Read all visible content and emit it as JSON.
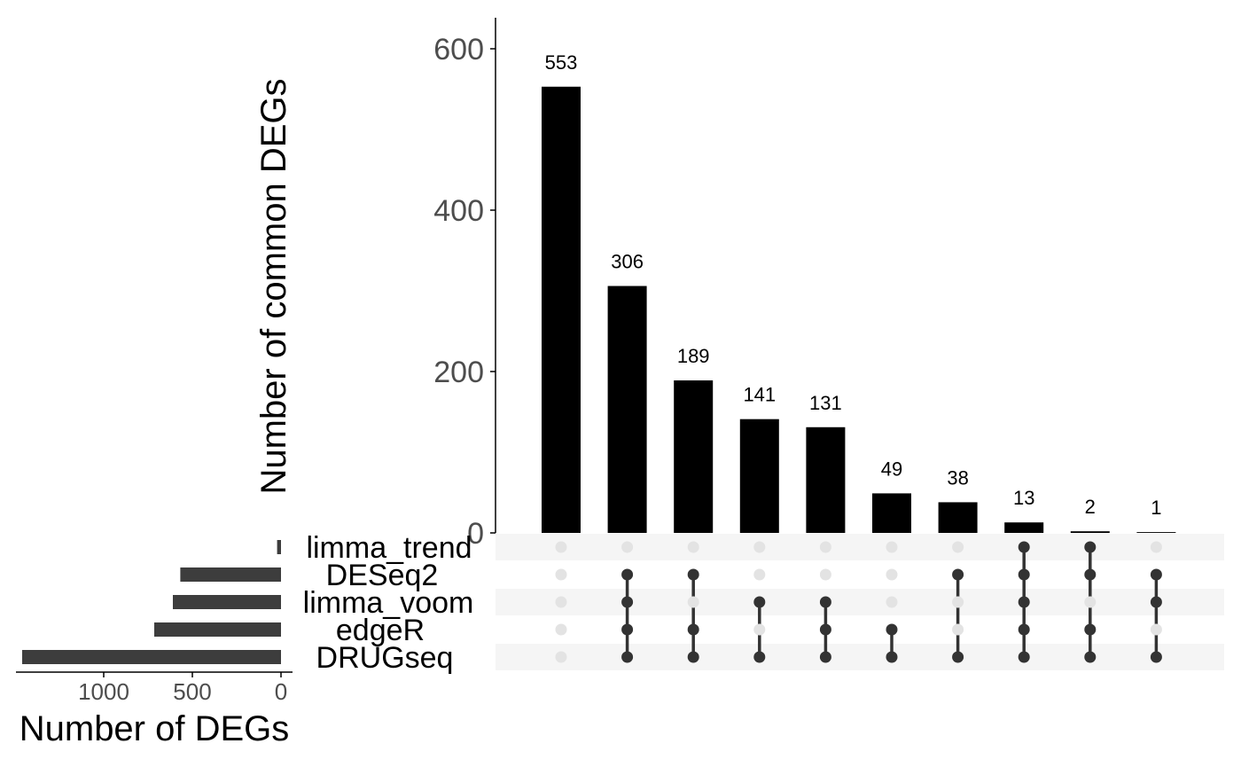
{
  "chart_data": {
    "type": "upset",
    "intersection_plot": {
      "type": "bar",
      "ylabel": "Number of common DEGs",
      "yticks": [
        0,
        200,
        400,
        600
      ],
      "ylim": [
        0,
        640
      ],
      "values": [
        553,
        306,
        189,
        141,
        131,
        49,
        38,
        13,
        2,
        1
      ],
      "value_labels": [
        "553",
        "306",
        "189",
        "141",
        "131",
        "49",
        "38",
        "13",
        "2",
        "1"
      ],
      "bar_color": "#000000"
    },
    "sets": [
      "limma_trend",
      "DESeq2",
      "limma_voom",
      "edgeR",
      "DRUGseq"
    ],
    "matrix": [
      [
        0,
        0,
        0,
        0,
        0
      ],
      [
        0,
        1,
        1,
        1,
        1
      ],
      [
        0,
        1,
        0,
        1,
        1
      ],
      [
        0,
        0,
        1,
        0,
        1
      ],
      [
        0,
        0,
        1,
        1,
        1
      ],
      [
        0,
        0,
        0,
        1,
        1
      ],
      [
        0,
        1,
        0,
        0,
        1
      ],
      [
        1,
        1,
        1,
        1,
        1
      ],
      [
        1,
        1,
        0,
        1,
        1
      ],
      [
        0,
        1,
        1,
        0,
        1
      ]
    ],
    "set_size_plot": {
      "type": "bar",
      "orientation": "horizontal",
      "xlabel": "Number of DEGs",
      "xticks": [
        1000,
        500,
        0
      ],
      "xlim": [
        0,
        1500
      ],
      "values": [
        22,
        568,
        610,
        715,
        1460
      ],
      "bar_color": "#3d3d3d"
    },
    "colors": {
      "active_dot": "#333333",
      "inactive_dot": "#e3e3e3",
      "stripe": "#f5f5f5"
    }
  }
}
